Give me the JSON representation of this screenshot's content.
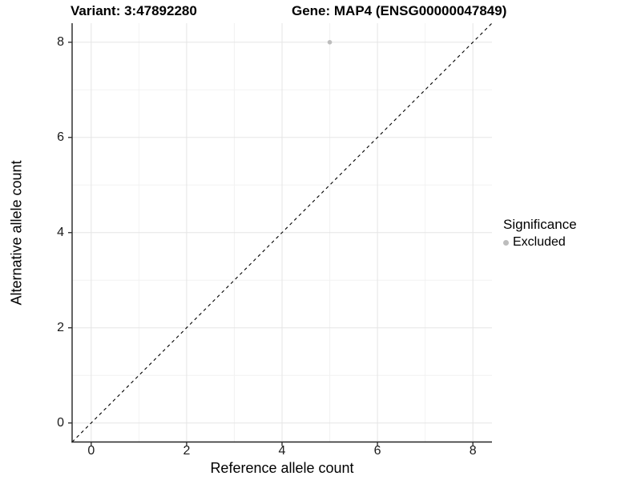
{
  "titles": {
    "variant": "Variant: 3:47892280",
    "gene": "Gene: MAP4 (ENSG00000047849)"
  },
  "legend": {
    "title": "Significance",
    "items": [
      {
        "label": "Excluded",
        "color": "#bdbdbd"
      }
    ]
  },
  "colors": {
    "background": "#ffffff",
    "grid_major": "#e5e5e5",
    "grid_minor": "#f2f2f2",
    "axis_line": "#222222",
    "tick_mark": "#333333",
    "point": "#bdbdbd",
    "dashed_line": "#000000"
  },
  "chart_data": {
    "type": "scatter",
    "title": "Variant: 3:47892280   Gene: MAP4 (ENSG00000047849)",
    "xlabel": "Reference allele count",
    "ylabel": "Alternative allele count",
    "xlim": [
      -0.4,
      8.4
    ],
    "ylim": [
      -0.4,
      8.4
    ],
    "x_ticks": [
      0,
      2,
      4,
      6,
      8
    ],
    "y_ticks": [
      0,
      2,
      4,
      6,
      8
    ],
    "x_minor_ticks": [
      1,
      3,
      5,
      7
    ],
    "y_minor_ticks": [
      1,
      3,
      5,
      7
    ],
    "grid": true,
    "legend_position": "right",
    "series": [
      {
        "name": "Excluded",
        "color": "#bdbdbd",
        "points": [
          {
            "x": 5,
            "y": 8
          }
        ]
      }
    ],
    "reference_line": {
      "type": "abline",
      "slope": 1,
      "intercept": 0,
      "style": "dashed",
      "color": "#000000"
    }
  }
}
